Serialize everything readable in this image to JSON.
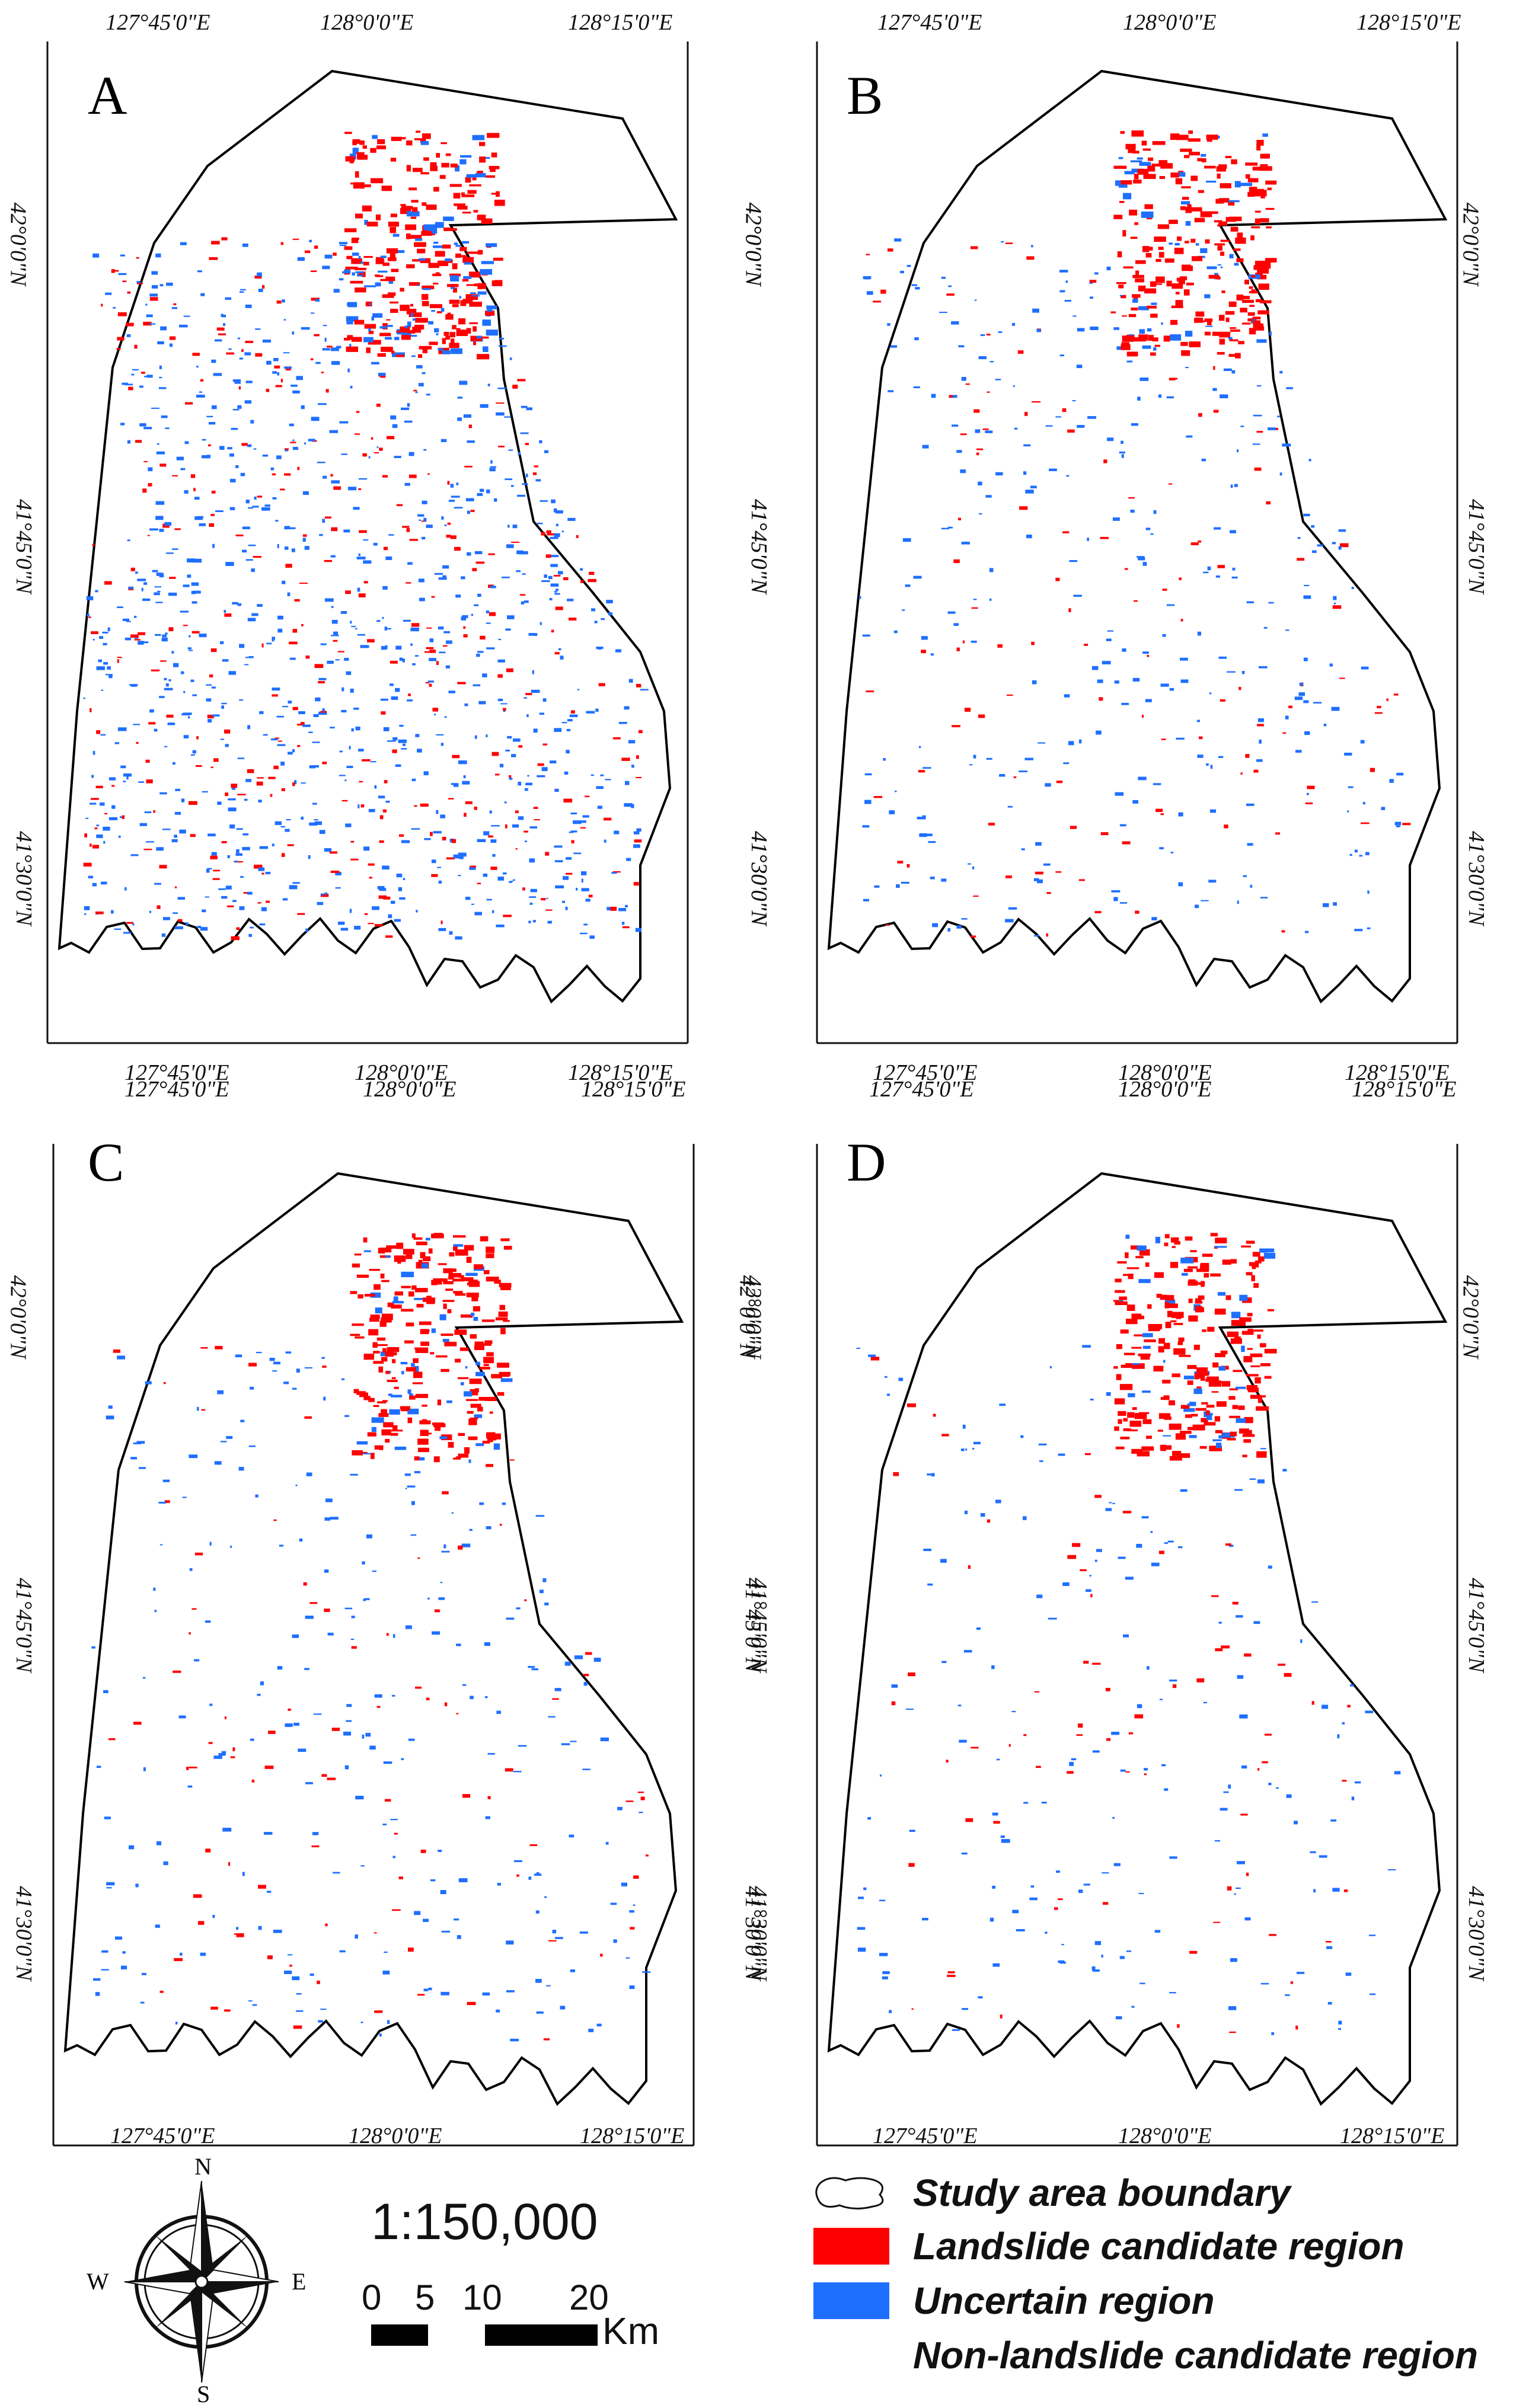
{
  "panels": [
    {
      "label": "A",
      "lon_ticks": [
        "127°45'0\"E",
        "128°0'0\"E",
        "128°15'0\"E"
      ],
      "lat_ticks": [
        "42°0'0\"N",
        "41°45'0\"N",
        "41°30'0\"N"
      ]
    },
    {
      "label": "B",
      "lon_ticks": [
        "127°45'0\"E",
        "128°0'0\"E",
        "128°15'0\"E"
      ],
      "lat_ticks": [
        "42°0'0\"N",
        "41°45'0\"N",
        "41°30'0\"N"
      ]
    },
    {
      "label": "C",
      "lon_ticks": [
        "127°45'0\"E",
        "128°0'0\"E",
        "128°15'0\"E"
      ],
      "lat_ticks": [
        "42°0'0\"N",
        "41°45'0\"N",
        "41°30'0\"N"
      ]
    },
    {
      "label": "D",
      "lon_ticks": [
        "127°45'0\"E",
        "128°0'0\"E",
        "128°15'0\"E"
      ],
      "lat_ticks": [
        "42°0'0\"N",
        "41°45'0\"N",
        "41°30'0\"N"
      ]
    }
  ],
  "compass": {
    "north": "N",
    "south": "S",
    "east": "E",
    "west": "W"
  },
  "scale": {
    "ratio": "1:150,000",
    "ticks": [
      "0",
      "5",
      "10",
      "20"
    ],
    "unit": "Km"
  },
  "legend": [
    {
      "label": "Study area boundary",
      "icon": "boundary-outline-icon"
    },
    {
      "label": "Landslide candidate region",
      "color": "#ff0000"
    },
    {
      "label": "Uncertain region",
      "color": "#1f6fff"
    },
    {
      "label": "Non-landslide candidate region",
      "color": "#ffffff"
    }
  ],
  "colors": {
    "landslide": "#ff0000",
    "uncertain": "#1f6fff",
    "boundary": "#000000"
  }
}
